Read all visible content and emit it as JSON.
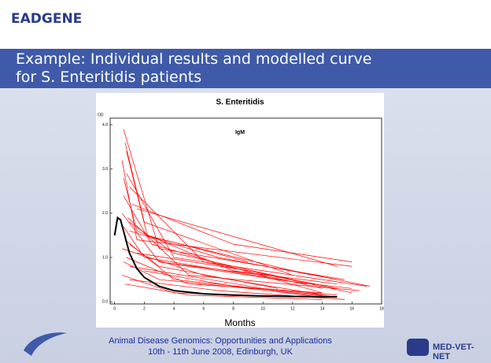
{
  "header": {
    "logo": "EADGENE"
  },
  "slide": {
    "title_lines": [
      "Example: Individual results and modelled curve",
      "for S. Enteritidis patients"
    ]
  },
  "chart_data": {
    "type": "line",
    "title": "S. Enteritidis",
    "annotation": "IgM",
    "y_label": "OD",
    "x_label": "Months",
    "xlim": [
      -0.3,
      18
    ],
    "ylim": [
      -0.05,
      4.15
    ],
    "xticks": [
      0,
      2,
      4,
      6,
      8,
      10,
      12,
      14,
      16,
      18
    ],
    "yticks": [
      {
        "value": 0,
        "label": "0.0"
      },
      {
        "value": 1,
        "label": "1.0"
      },
      {
        "value": 2,
        "label": "2.0"
      },
      {
        "value": 3,
        "label": "3.0"
      },
      {
        "value": 4,
        "label": "4.0"
      }
    ],
    "series": [
      {
        "color": "#ff0000",
        "x": [
          0.6,
          3,
          15.5
        ],
        "values": [
          3.9,
          1.2,
          0.5
        ]
      },
      {
        "color": "#ff0000",
        "x": [
          0.7,
          2,
          12
        ],
        "values": [
          3.6,
          1.8,
          0.6
        ]
      },
      {
        "color": "#ff0000",
        "x": [
          0.5,
          1.5,
          16
        ],
        "values": [
          3.2,
          1.4,
          0.8
        ]
      },
      {
        "color": "#ff0000",
        "x": [
          0.8,
          4,
          17
        ],
        "values": [
          2.9,
          1.0,
          0.35
        ]
      },
      {
        "color": "#ff0000",
        "x": [
          1,
          6,
          15
        ],
        "values": [
          2.6,
          0.9,
          0.3
        ]
      },
      {
        "color": "#ff0000",
        "x": [
          0.6,
          2.5,
          14
        ],
        "values": [
          2.4,
          1.3,
          0.2
        ]
      },
      {
        "color": "#ff0000",
        "x": [
          1.2,
          8,
          16
        ],
        "values": [
          2.2,
          1.3,
          0.9
        ]
      },
      {
        "color": "#ff0000",
        "x": [
          0.5,
          3,
          10,
          14
        ],
        "values": [
          2.0,
          0.9,
          0.6,
          0.3
        ]
      },
      {
        "color": "#ff0000",
        "x": [
          1.5,
          15
        ],
        "values": [
          2.1,
          0.8
        ]
      },
      {
        "color": "#ff0000",
        "x": [
          0.9,
          5,
          16.5
        ],
        "values": [
          1.9,
          0.6,
          0.25
        ]
      },
      {
        "color": "#ff0000",
        "x": [
          0.6,
          2,
          13
        ],
        "values": [
          1.7,
          1.0,
          0.4
        ]
      },
      {
        "color": "#ff0000",
        "x": [
          1,
          7,
          15
        ],
        "values": [
          1.6,
          1.0,
          0.5
        ]
      },
      {
        "color": "#ff0000",
        "x": [
          2,
          12,
          17.2
        ],
        "values": [
          1.5,
          0.7,
          0.35
        ]
      },
      {
        "color": "#ff0000",
        "x": [
          0.7,
          4,
          14
        ],
        "values": [
          1.4,
          0.5,
          0.15
        ]
      },
      {
        "color": "#ff0000",
        "x": [
          1,
          3,
          11
        ],
        "values": [
          1.3,
          0.8,
          0.3
        ]
      },
      {
        "color": "#ff0000",
        "x": [
          0.5,
          6,
          15
        ],
        "values": [
          1.2,
          0.6,
          0.1
        ]
      },
      {
        "color": "#ff0000",
        "x": [
          1.5,
          9,
          16
        ],
        "values": [
          1.1,
          0.7,
          0.2
        ]
      },
      {
        "color": "#ff0000",
        "x": [
          0.8,
          5,
          14
        ],
        "values": [
          1.0,
          0.4,
          0.2
        ]
      },
      {
        "color": "#ff0000",
        "x": [
          0.6,
          3,
          15
        ],
        "values": [
          0.9,
          0.5,
          0.1
        ]
      },
      {
        "color": "#ff0000",
        "x": [
          1,
          10,
          15
        ],
        "values": [
          0.8,
          0.3,
          0.15
        ]
      },
      {
        "color": "#ff0000",
        "x": [
          2,
          8,
          14
        ],
        "values": [
          0.7,
          0.35,
          0.1
        ]
      },
      {
        "color": "#ff0000",
        "x": [
          0.5,
          4,
          13
        ],
        "values": [
          0.6,
          0.2,
          0.1
        ]
      },
      {
        "color": "#ff0000",
        "x": [
          1,
          7,
          15.5
        ],
        "values": [
          0.5,
          0.25,
          0.05
        ]
      },
      {
        "color": "#ff0000",
        "x": [
          0.7,
          5,
          14
        ],
        "values": [
          0.4,
          0.15,
          0.05
        ]
      },
      {
        "color": "#ff0000",
        "x": [
          3,
          12,
          16
        ],
        "values": [
          0.9,
          0.45,
          0.3
        ]
      },
      {
        "color": "#ff0000",
        "x": [
          0.6,
          1.5,
          8,
          15
        ],
        "values": [
          2.8,
          1.6,
          0.7,
          0.4
        ]
      },
      {
        "color": "#ff0000",
        "x": [
          0.8,
          2.2,
          9
        ],
        "values": [
          3.4,
          1.5,
          0.9
        ]
      },
      {
        "color": "#ff0000",
        "x": [
          1,
          4,
          12,
          15
        ],
        "values": [
          1.8,
          1.1,
          0.5,
          0.3
        ]
      },
      {
        "color": "#000000",
        "x": [
          0,
          0.2,
          0.4,
          0.6,
          1,
          1.5,
          2,
          3,
          4,
          6,
          8,
          10,
          12,
          15
        ],
        "values": [
          1.5,
          1.9,
          1.85,
          1.6,
          1.1,
          0.75,
          0.55,
          0.35,
          0.25,
          0.18,
          0.15,
          0.13,
          0.12,
          0.11
        ]
      }
    ]
  },
  "footer": {
    "lines": [
      "Animal Disease Genomics: Opportunities and Applications",
      "10th - 11th June 2008, Edinburgh, UK"
    ],
    "logo": "MED-VET-NET"
  }
}
